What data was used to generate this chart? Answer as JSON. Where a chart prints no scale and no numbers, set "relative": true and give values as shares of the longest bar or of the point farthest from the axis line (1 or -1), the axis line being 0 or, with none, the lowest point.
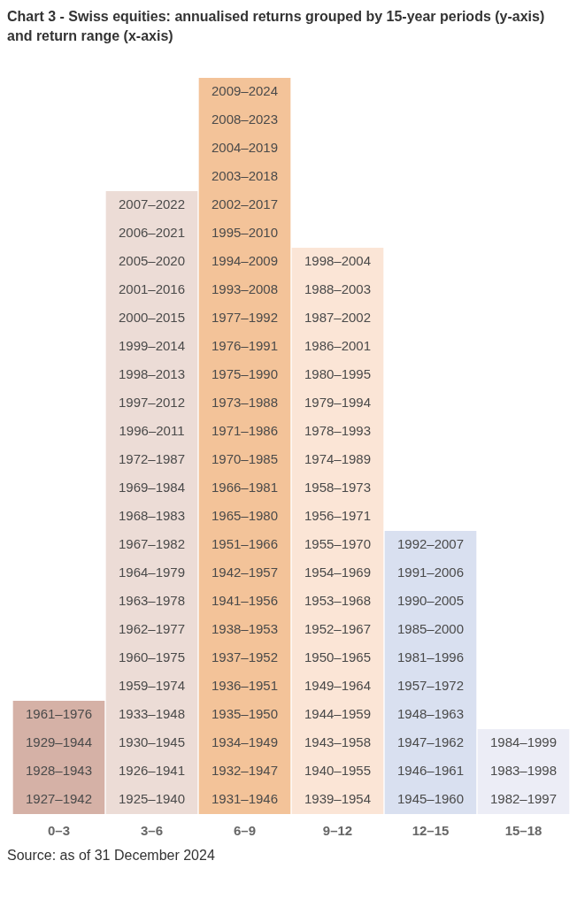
{
  "chart_data": {
    "type": "bar",
    "title": "Chart 3 - Swiss equities: annualised returns grouped by 15-year periods (y-axis) and return range (x-axis)",
    "categories": [
      "0–3",
      "3–6",
      "6–9",
      "9–12",
      "12–15",
      "15–18"
    ],
    "relative": true,
    "legend": false,
    "values": [
      0.1538,
      0.8462,
      1,
      0.7692,
      0.3846,
      0.1154
    ],
    "colors": [
      "#d5b1a6",
      "#ecdcd6",
      "#f3c399",
      "#fbe5d6",
      "#d9e0f0",
      "#ecedf6"
    ],
    "annotations": [
      "1961–1976\n1929–1944\n1928–1943\n1927–1942",
      "2007–2022\n2006–2021\n2005–2020\n2001–2016\n2000–2015\n1999–2014\n1998–2013\n1997–2012\n1996–2011\n1972–1987\n1969–1984\n1968–1983\n1967–1982\n1964–1979\n1963–1978\n1962–1977\n1960–1975\n1959–1974\n1933–1948\n1930–1945\n1926–1941\n1925–1940",
      "2009–2024\n2008–2023\n2004–2019\n2003–2018\n2002–2017\n1995–2010\n1994–2009\n1993–2008\n1977–1992\n1976–1991\n1975–1990\n1973–1988\n1971–1986\n1970–1985\n1966–1981\n1965–1980\n1951–1966\n1942–1957\n1941–1956\n1938–1953\n1937–1952\n1936–1951\n1935–1950\n1934–1949\n1932–1947\n1931–1946",
      "1998–2004\n1988–2003\n1987–2002\n1986–2001\n1980–1995\n1979–1994\n1978–1993\n1974–1989\n1958–1973\n1956–1971\n1955–1970\n1954–1969\n1953–1968\n1952–1967\n1950–1965\n1949–1964\n1944–1959\n1943–1958\n1940–1955\n1939–1954",
      "1992–2007\n1991–2006\n1990–2005\n1985–2000\n1981–1996\n1957–1972\n1948–1963\n1947–1962\n1946–1961\n1945–1960",
      "1984–1999\n1983–1998\n1982–1997",
      "Source: as of 31 December 2024"
    ]
  }
}
